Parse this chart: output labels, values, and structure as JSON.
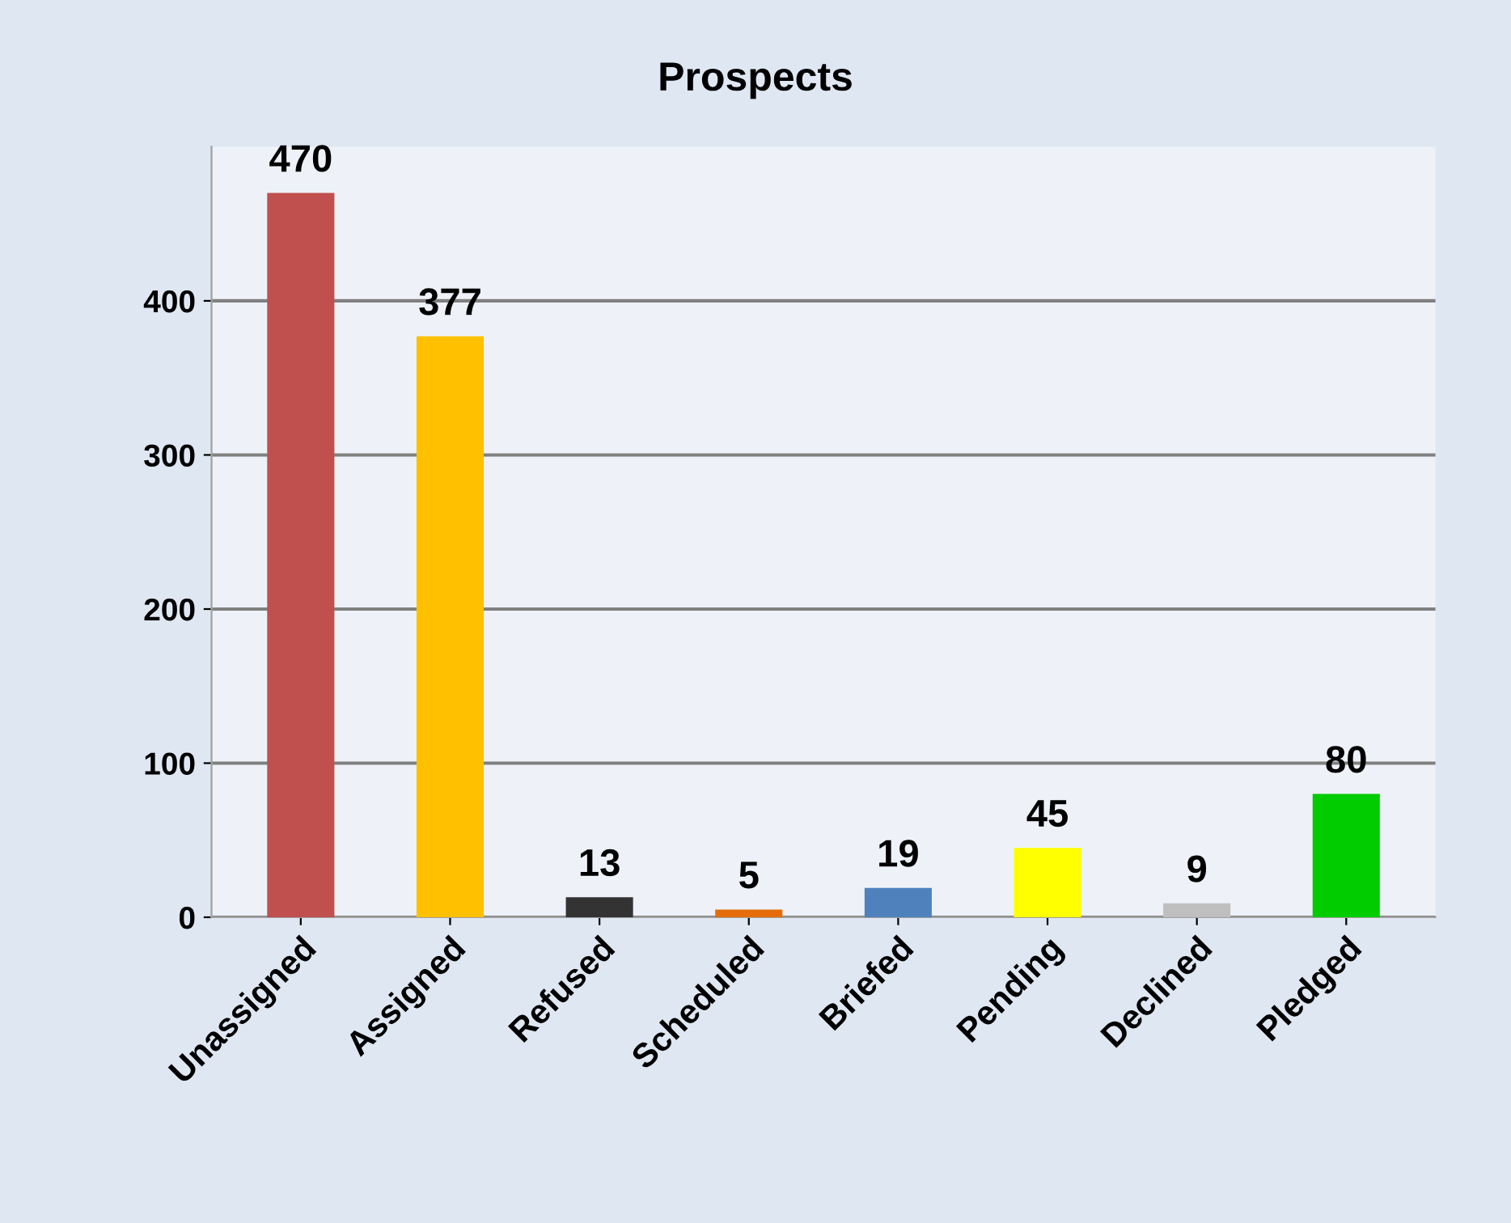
{
  "chart_data": {
    "type": "bar",
    "title": "Prospects",
    "categories": [
      "Unassigned",
      "Assigned",
      "Refused",
      "Scheduled",
      "Briefed",
      "Pending",
      "Declined",
      "Pledged"
    ],
    "values": [
      470,
      377,
      13,
      5,
      19,
      45,
      9,
      80
    ],
    "colors": [
      "#c0504d",
      "#ffc000",
      "#333333",
      "#e46c0a",
      "#4f81bd",
      "#ffff00",
      "#bfbfbf",
      "#00cc00"
    ],
    "ylim": [
      0,
      500
    ],
    "yticks": [
      0,
      100,
      200,
      300,
      400
    ],
    "grid": "y",
    "data_labels": true,
    "legend": false
  }
}
